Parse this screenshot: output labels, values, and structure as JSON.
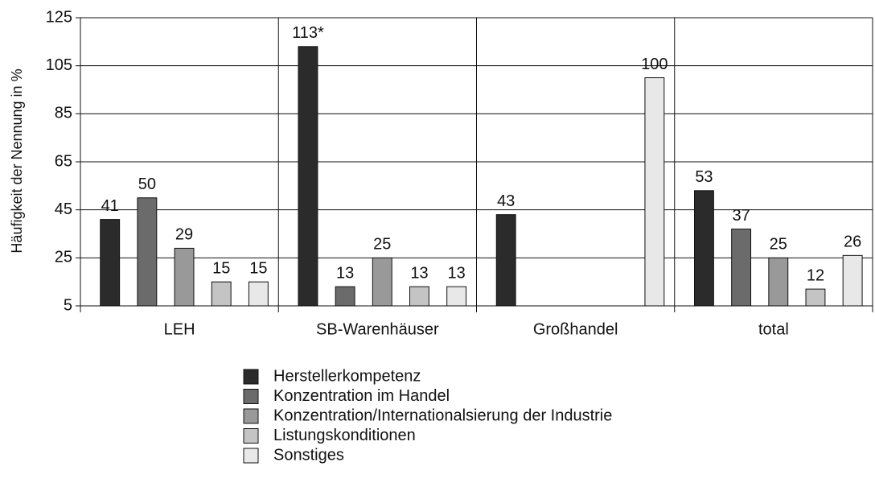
{
  "chart_data": {
    "type": "bar",
    "ylabel": "Häufigkeit der Nennung in %",
    "categories": [
      "LEH",
      "SB-Warenhäuser",
      "Großhandel",
      "total"
    ],
    "series": [
      {
        "name": "Herstellerkompetenz",
        "color": "#2b2b2b",
        "values": [
          41,
          113,
          43,
          53
        ],
        "value_labels": [
          "41",
          "113*",
          "43",
          "53"
        ]
      },
      {
        "name": "Konzentration im Handel",
        "color": "#6b6b6b",
        "values": [
          50,
          13,
          null,
          37
        ]
      },
      {
        "name": "Konzentration/Internationalsierung der Industrie",
        "color": "#999999",
        "values": [
          29,
          25,
          null,
          25
        ]
      },
      {
        "name": "Listungskonditionen",
        "color": "#c4c4c4",
        "values": [
          15,
          13,
          null,
          12
        ]
      },
      {
        "name": "Sonstiges",
        "color": "#e8e8e8",
        "values": [
          15,
          13,
          100,
          26
        ]
      }
    ],
    "ylim": [
      5,
      125
    ],
    "yticks": [
      5,
      25,
      45,
      65,
      85,
      105,
      125
    ],
    "grid": true,
    "legend": "bottom"
  }
}
